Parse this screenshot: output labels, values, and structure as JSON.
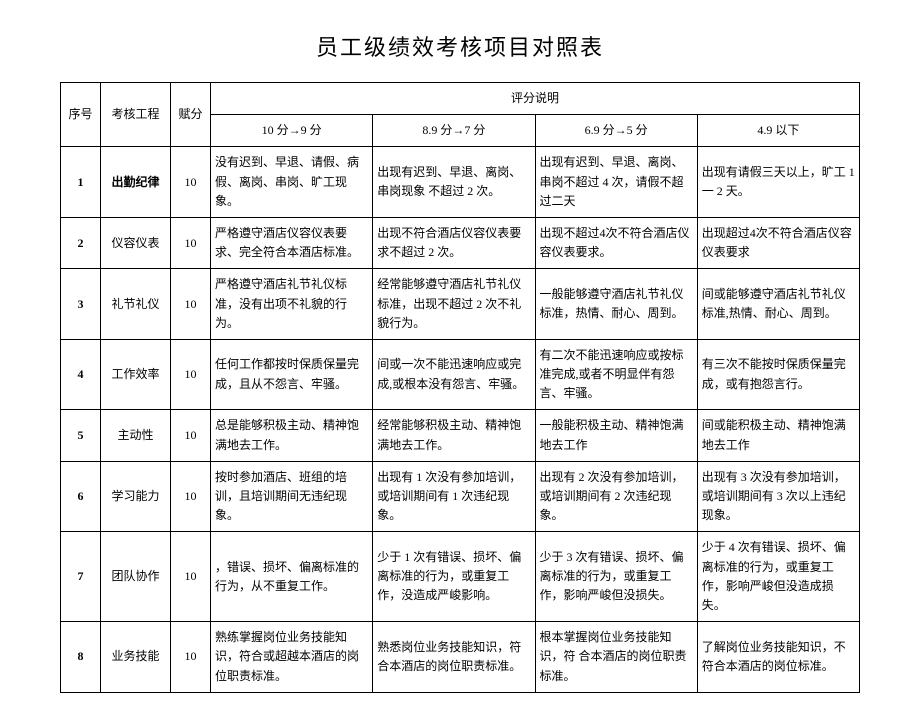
{
  "title": "员工级绩效考核项目对照表",
  "headers": {
    "seq": "序号",
    "item": "考核工程",
    "score": "赋分",
    "desc_group": "评分说明",
    "levels": [
      "10 分→9 分",
      "8.9 分→7 分",
      "6.9 分→5 分",
      "4.9 以下"
    ]
  },
  "rows": [
    {
      "seq": "1",
      "item": "出勤纪律",
      "item_bold": true,
      "score": "10",
      "cells": [
        "没有迟到、早退、请假、病假、离岗、串岗、旷工现象。",
        "出现有迟到、早退、离岗、串岗现象 不超过 2 次。",
        "出现有迟到、早退、离岗、串岗不超过 4 次，请假不超过二天",
        "出现有请假三天以上，旷工 1 一 2 天。"
      ]
    },
    {
      "seq": "2",
      "item": "仪容仪表",
      "score": "10",
      "cells": [
        "严格遵守酒店仪容仪表要求、完全符合本酒店标准。",
        "出现不符合酒店仪容仪表要求不超过 2 次。",
        "出现不超过4次不符合酒店仪容仪表要求。",
        "出现超过4次不符合酒店仪容仪表要求"
      ]
    },
    {
      "seq": "3",
      "item": "礼节礼仪",
      "score": "10",
      "cells": [
        "严格遵守酒店礼节礼仪标准，没有出项不礼貌的行为。",
        "经常能够遵守酒店礼节礼仪标准，出现不超过 2 次不礼貌行为。",
        "一般能够遵守酒店礼节礼仪标准，热情、耐心、周到。",
        "间或能够遵守酒店礼节礼仪标准,热情、耐心、周到。"
      ]
    },
    {
      "seq": "4",
      "item": "工作效率",
      "score": "10",
      "cells": [
        "任何工作都按时保质保量完成，且从不怨言、牢骚。",
        "间或一次不能迅速响应或完成,或根本没有怨言、牢骚。",
        "有二次不能迅速响应或按标准完成,或者不明显伴有怨言、牢骚。",
        "有三次不能按时保质保量完成，或有抱怨言行。"
      ]
    },
    {
      "seq": "5",
      "item": "主动性",
      "score": "10",
      "cells": [
        "总是能够积极主动、精神饱满地去工作。",
        "经常能够积极主动、精神饱满地去工作。",
        "一般能积极主动、精神饱满地去工作",
        "间或能积极主动、精神饱满地去工作"
      ]
    },
    {
      "seq": "6",
      "item": "学习能力",
      "score": "10",
      "cells": [
        "按时参加酒店、班组的培训，且培训期间无违纪现象。",
        "出现有 1 次没有参加培训，或培训期间有 1 次违纪现象。",
        "出现有 2 次没有参加培训，或培训期间有 2 次违纪现象。",
        "出现有 3 次没有参加培训，或培训期间有 3 次以上违纪现象。"
      ]
    },
    {
      "seq": "7",
      "item": "团队协作",
      "score": "10",
      "cells": [
        "，错误、损坏、偏离标准的行为，从不重复工作。",
        "少于 1 次有错误、损坏、偏离标准的行为，或重复工作，没造成严峻影响。",
        "少于 3 次有错误、损坏、偏离标准的行为，或重复工作，影响严峻但没损失。",
        "少于 4 次有错误、损坏、偏离标准的行为，或重复工作，影响严峻但没造成损失。"
      ]
    },
    {
      "seq": "8",
      "item": "业务技能",
      "score": "10",
      "cells": [
        "熟练掌握岗位业务技能知识，符合或超越本酒店的岗位职责标准。",
        "熟悉岗位业务技能知识，符合本酒店的岗位职责标准。",
        "根本掌握岗位业务技能知识，符 合本酒店的岗位职责标准。",
        "了解岗位业务技能知识，不符合本酒店的岗位标准。"
      ]
    }
  ]
}
